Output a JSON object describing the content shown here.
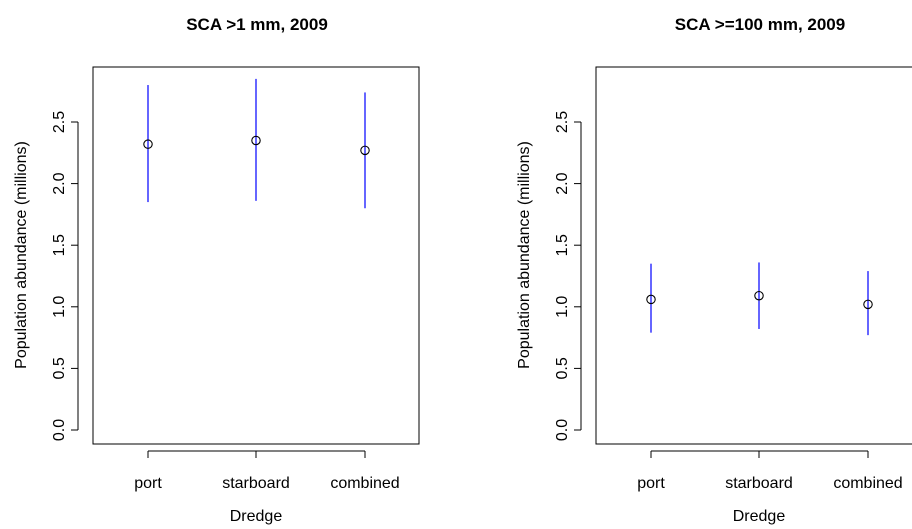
{
  "chart_data": [
    {
      "type": "scatter",
      "title": "SCA >1 mm, 2009",
      "xlabel": "Dredge",
      "ylabel": "Population abundance (millions)",
      "categories": [
        "port",
        "starboard",
        "combined"
      ],
      "values": [
        2.32,
        2.35,
        2.27
      ],
      "error_low": [
        1.85,
        1.86,
        1.8
      ],
      "error_high": [
        2.8,
        2.85,
        2.74
      ],
      "yticks": [
        "0.0",
        "0.5",
        "1.0",
        "1.5",
        "2.0",
        "2.5"
      ],
      "ylim": [
        0,
        2.9
      ],
      "error_bar_color": "#0000ff",
      "point_color": "#000000"
    },
    {
      "type": "scatter",
      "title": "SCA >=100 mm, 2009",
      "xlabel": "Dredge",
      "ylabel": "Population abundance (millions)",
      "categories": [
        "port",
        "starboard",
        "combined"
      ],
      "values": [
        1.06,
        1.09,
        1.02
      ],
      "error_low": [
        0.79,
        0.82,
        0.77
      ],
      "error_high": [
        1.35,
        1.36,
        1.29
      ],
      "yticks": [
        "0.0",
        "0.5",
        "1.0",
        "1.5",
        "2.0",
        "2.5"
      ],
      "ylim": [
        0,
        2.9
      ],
      "error_bar_color": "#0000ff",
      "point_color": "#000000"
    }
  ]
}
